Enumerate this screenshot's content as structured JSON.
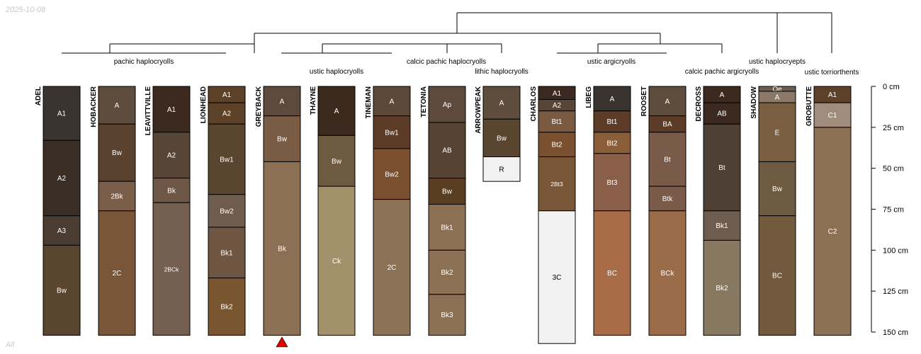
{
  "header": {
    "date": "2025-10-08"
  },
  "footer": {
    "label": "All"
  },
  "colors": {
    "line": "#000000",
    "text_dark": "#000000",
    "text_light": "#ffffff",
    "marker": "#e00000"
  },
  "depth_axis": {
    "unit": "cm",
    "max": 150,
    "ticks": [
      {
        "value": 0,
        "label": "0 cm"
      },
      {
        "value": 25,
        "label": "25 cm"
      },
      {
        "value": 50,
        "label": "50 cm"
      },
      {
        "value": 75,
        "label": "75 cm"
      },
      {
        "value": 100,
        "label": "100 cm"
      },
      {
        "value": 125,
        "label": "125 cm"
      },
      {
        "value": 150,
        "label": "150 cm"
      }
    ]
  },
  "taxa_labels": [
    "pachic haplocryolls",
    "ustic haplocryolls",
    "calcic pachic haplocryolls",
    "lithic haplocryolls",
    "ustic argicryolls",
    "calcic pachic argicryolls",
    "ustic haplocryepts",
    "ustic torriorthents"
  ],
  "marker": {
    "profile": "GREYBACK",
    "shape": "triangle"
  },
  "profiles": [
    {
      "name": "ADEL",
      "horizons": [
        {
          "name": "A1",
          "top": 0,
          "bottom": 33,
          "color": "#3a3430"
        },
        {
          "name": "A2",
          "top": 33,
          "bottom": 79,
          "color": "#3a2e24"
        },
        {
          "name": "A3",
          "top": 79,
          "bottom": 97,
          "color": "#4a3c30"
        },
        {
          "name": "Bw",
          "top": 97,
          "bottom": 152,
          "color": "#5a4530"
        }
      ]
    },
    {
      "name": "HOBACKER",
      "horizons": [
        {
          "name": "A",
          "top": 0,
          "bottom": 23,
          "color": "#5e4c3c"
        },
        {
          "name": "Bw",
          "top": 23,
          "bottom": 58,
          "color": "#5a4230"
        },
        {
          "name": "2Bk",
          "top": 58,
          "bottom": 76,
          "color": "#7a5e4a"
        },
        {
          "name": "2C",
          "top": 76,
          "bottom": 152,
          "color": "#7a5638"
        }
      ]
    },
    {
      "name": "LEAVITTVILLE",
      "horizons": [
        {
          "name": "A1",
          "top": 0,
          "bottom": 28,
          "color": "#3c2a20"
        },
        {
          "name": "A2",
          "top": 28,
          "bottom": 56,
          "color": "#574538"
        },
        {
          "name": "Bk",
          "top": 56,
          "bottom": 71,
          "color": "#6e5746"
        },
        {
          "name": "2BCk",
          "top": 71,
          "bottom": 152,
          "color": "#735e4f"
        }
      ]
    },
    {
      "name": "LIONHEAD",
      "horizons": [
        {
          "name": "A1",
          "top": 0,
          "bottom": 10,
          "color": "#5d4128"
        },
        {
          "name": "A2",
          "top": 10,
          "bottom": 23,
          "color": "#5d4128"
        },
        {
          "name": "Bw1",
          "top": 23,
          "bottom": 66,
          "color": "#5a4530"
        },
        {
          "name": "Bw2",
          "top": 66,
          "bottom": 86,
          "color": "#6e5c4e"
        },
        {
          "name": "Bk1",
          "top": 86,
          "bottom": 117,
          "color": "#6e5643"
        },
        {
          "name": "Bk2",
          "top": 117,
          "bottom": 152,
          "color": "#7a5630"
        }
      ]
    },
    {
      "name": "GREYBACK",
      "horizons": [
        {
          "name": "A",
          "top": 0,
          "bottom": 18,
          "color": "#5e4a3c"
        },
        {
          "name": "Bw",
          "top": 18,
          "bottom": 46,
          "color": "#7a5c44"
        },
        {
          "name": "Bk",
          "top": 46,
          "bottom": 152,
          "color": "#8c7054"
        }
      ]
    },
    {
      "name": "THAYNE",
      "horizons": [
        {
          "name": "A",
          "top": 0,
          "bottom": 30,
          "color": "#3c2a1e"
        },
        {
          "name": "Bw",
          "top": 30,
          "bottom": 61,
          "color": "#6e5a40"
        },
        {
          "name": "Ck",
          "top": 61,
          "bottom": 152,
          "color": "#a3916c"
        }
      ]
    },
    {
      "name": "TINEMAN",
      "horizons": [
        {
          "name": "A",
          "top": 0,
          "bottom": 18,
          "color": "#5e4838"
        },
        {
          "name": "Bw1",
          "top": 18,
          "bottom": 38,
          "color": "#5c3c26"
        },
        {
          "name": "Bw2",
          "top": 38,
          "bottom": 69,
          "color": "#7a5030"
        },
        {
          "name": "2C",
          "top": 69,
          "bottom": 152,
          "color": "#8c7256"
        }
      ]
    },
    {
      "name": "TETONIA",
      "horizons": [
        {
          "name": "Ap",
          "top": 0,
          "bottom": 22,
          "color": "#5e4a3c"
        },
        {
          "name": "AB",
          "top": 22,
          "bottom": 56,
          "color": "#574331"
        },
        {
          "name": "Bw",
          "top": 56,
          "bottom": 72,
          "color": "#5a3e22"
        },
        {
          "name": "Bk1",
          "top": 72,
          "bottom": 100,
          "color": "#8c7054"
        },
        {
          "name": "Bk2",
          "top": 100,
          "bottom": 127,
          "color": "#8c7054"
        },
        {
          "name": "Bk3",
          "top": 127,
          "bottom": 152,
          "color": "#8c7054"
        }
      ]
    },
    {
      "name": "ARROWPEAK",
      "horizons": [
        {
          "name": "A",
          "top": 0,
          "bottom": 20,
          "color": "#5e4c3c"
        },
        {
          "name": "Bw",
          "top": 20,
          "bottom": 43,
          "color": "#5a4530"
        },
        {
          "name": "R",
          "top": 43,
          "bottom": 58,
          "color": "#f2f2f2"
        }
      ]
    },
    {
      "name": "CHARLOS",
      "horizons": [
        {
          "name": "A1",
          "top": 0,
          "bottom": 8,
          "color": "#3c2a20"
        },
        {
          "name": "A2",
          "top": 8,
          "bottom": 15,
          "color": "#574538"
        },
        {
          "name": "Bt1",
          "top": 15,
          "bottom": 28,
          "color": "#7a5a40"
        },
        {
          "name": "Bt2",
          "top": 28,
          "bottom": 43,
          "color": "#7a5030"
        },
        {
          "name": "2Bt3",
          "top": 43,
          "bottom": 76,
          "color": "#7a5638"
        },
        {
          "name": "3C",
          "top": 76,
          "bottom": 157,
          "color": "#f2f2f2"
        }
      ]
    },
    {
      "name": "LIBEG",
      "horizons": [
        {
          "name": "A",
          "top": 0,
          "bottom": 15,
          "color": "#3a3430"
        },
        {
          "name": "Bt1",
          "top": 15,
          "bottom": 28,
          "color": "#5c3c26"
        },
        {
          "name": "Bt2",
          "top": 28,
          "bottom": 41,
          "color": "#8a5e38"
        },
        {
          "name": "Bt3",
          "top": 41,
          "bottom": 76,
          "color": "#8a5e48"
        },
        {
          "name": "BC",
          "top": 76,
          "bottom": 152,
          "color": "#a86c46"
        }
      ]
    },
    {
      "name": "ROOSET",
      "horizons": [
        {
          "name": "A",
          "top": 0,
          "bottom": 18,
          "color": "#5e4c3c"
        },
        {
          "name": "BA",
          "top": 18,
          "bottom": 28,
          "color": "#5c3c26"
        },
        {
          "name": "Bt",
          "top": 28,
          "bottom": 61,
          "color": "#7a5a48"
        },
        {
          "name": "Btk",
          "top": 61,
          "bottom": 76,
          "color": "#7a5a48"
        },
        {
          "name": "BCk",
          "top": 76,
          "bottom": 152,
          "color": "#9a6c4a"
        }
      ]
    },
    {
      "name": "DECROSS",
      "horizons": [
        {
          "name": "A",
          "top": 0,
          "bottom": 10,
          "color": "#3c2a20"
        },
        {
          "name": "AB",
          "top": 10,
          "bottom": 23,
          "color": "#3c2a20"
        },
        {
          "name": "Bt",
          "top": 23,
          "bottom": 76,
          "color": "#4e4034"
        },
        {
          "name": "Bk1",
          "top": 76,
          "bottom": 94,
          "color": "#6e5c4e"
        },
        {
          "name": "Bk2",
          "top": 94,
          "bottom": 152,
          "color": "#877862"
        }
      ]
    },
    {
      "name": "SHADOW",
      "horizons": [
        {
          "name": "Oe",
          "top": 0,
          "bottom": 3,
          "color": "#6e5c4e"
        },
        {
          "name": "A",
          "top": 3,
          "bottom": 10,
          "color": "#8a7868"
        },
        {
          "name": "E",
          "top": 10,
          "bottom": 46,
          "color": "#7a5e40"
        },
        {
          "name": "Bw",
          "top": 46,
          "bottom": 79,
          "color": "#6e5a40"
        },
        {
          "name": "BC",
          "top": 79,
          "bottom": 152,
          "color": "#735a3e"
        }
      ]
    },
    {
      "name": "GROBUTTE",
      "horizons": [
        {
          "name": "A1",
          "top": 0,
          "bottom": 10,
          "color": "#5d4128"
        },
        {
          "name": "C1",
          "top": 10,
          "bottom": 25,
          "color": "#a08c7a"
        },
        {
          "name": "C2",
          "top": 25,
          "bottom": 152,
          "color": "#8c7054"
        }
      ]
    }
  ]
}
